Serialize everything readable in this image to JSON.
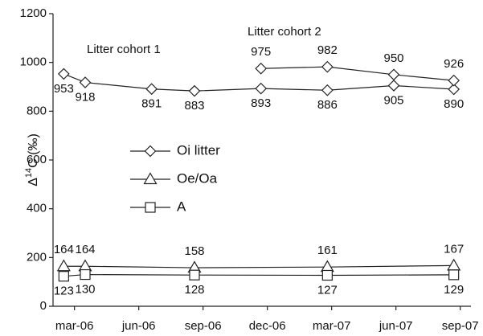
{
  "chart_data": {
    "type": "line",
    "ylabel": [
      "Δ",
      "14",
      "C (‰)"
    ],
    "annotations": [
      "Litter cohort 1",
      "Litter cohort 2"
    ],
    "xlim": [
      -1,
      18.5
    ],
    "xticks": [
      {
        "value": 0,
        "label": "mar-06"
      },
      {
        "value": 3,
        "label": "jun-06"
      },
      {
        "value": 6,
        "label": "sep-06"
      },
      {
        "value": 9,
        "label": "dec-06"
      },
      {
        "value": 12,
        "label": "mar-07"
      },
      {
        "value": 15,
        "label": "jun-07"
      },
      {
        "value": 18,
        "label": "sep-07"
      }
    ],
    "ylim": [
      0,
      1200
    ],
    "yticks": [
      0,
      200,
      400,
      600,
      800,
      1000,
      1200
    ],
    "color": "#222222",
    "series": [
      {
        "name": "Oi litter",
        "marker": "diamond",
        "label_side": "below",
        "x": [
          -0.5,
          0.5,
          3.6,
          5.6,
          8.7,
          11.8,
          14.9,
          17.7
        ],
        "values": [
          953,
          918,
          891,
          883,
          893,
          886,
          905,
          890
        ]
      },
      {
        "marker": "diamond",
        "label_side": "above",
        "x": [
          8.7,
          11.8,
          14.9,
          17.7
        ],
        "values": [
          975,
          982,
          950,
          926
        ]
      },
      {
        "name": "Oe/Oa",
        "marker": "triangle",
        "label_side": "above",
        "x": [
          -0.5,
          0.5,
          5.6,
          11.8,
          17.7
        ],
        "values": [
          164,
          164,
          158,
          161,
          167
        ]
      },
      {
        "name": "A",
        "marker": "square",
        "label_side": "below",
        "x": [
          -0.5,
          0.5,
          5.6,
          11.8,
          17.7
        ],
        "values": [
          123,
          130,
          128,
          127,
          129
        ]
      }
    ]
  }
}
